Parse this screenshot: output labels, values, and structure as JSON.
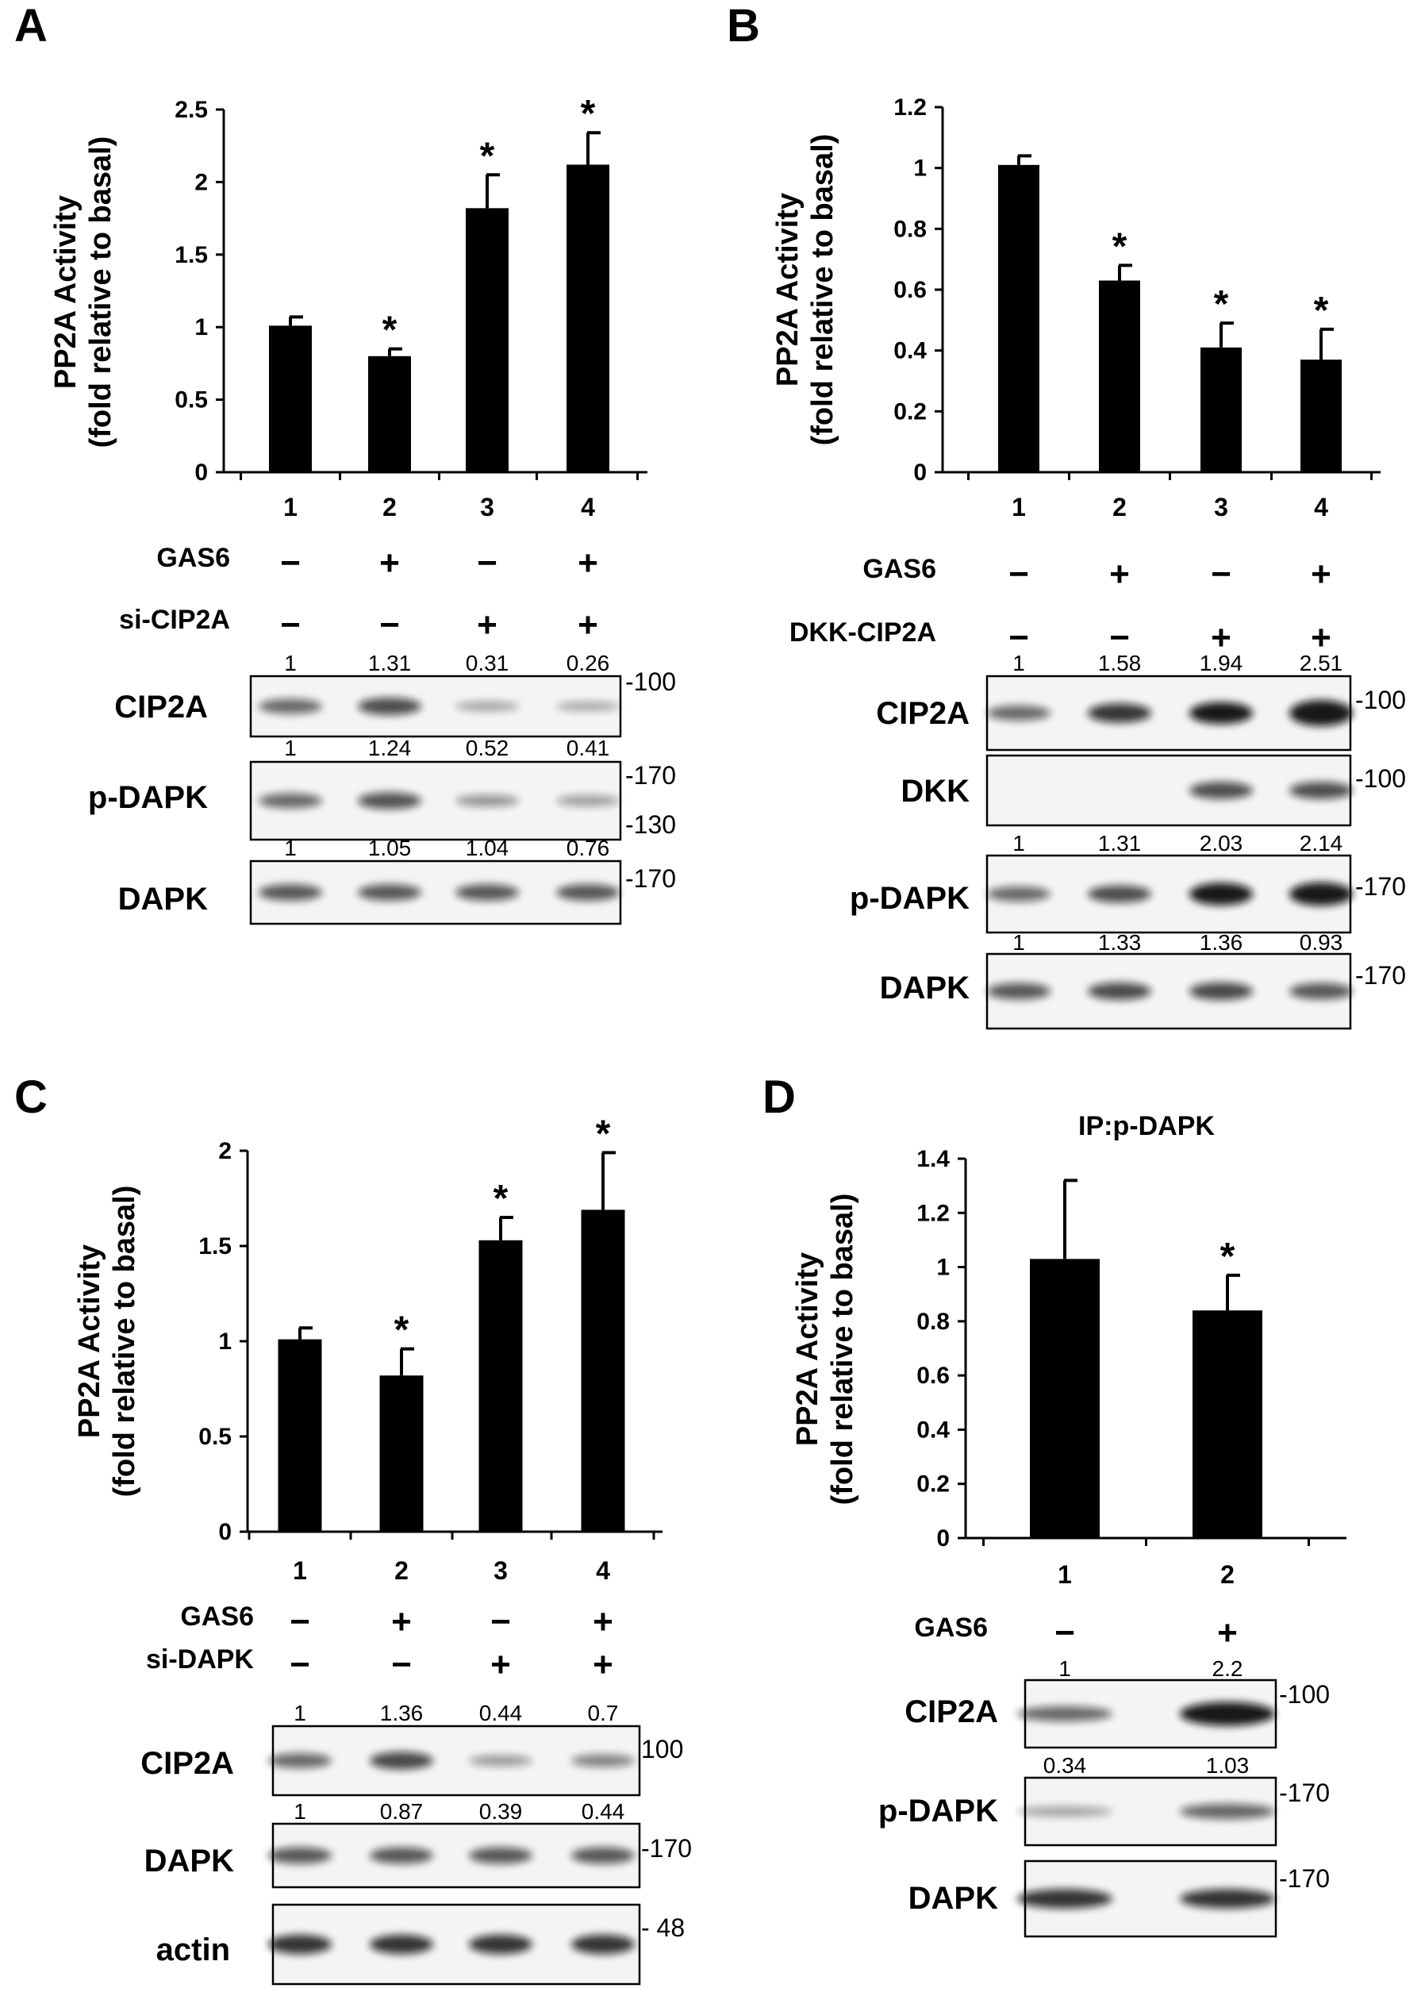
{
  "chart_data": [
    {
      "type": "bar",
      "panel": "A",
      "title": "",
      "ylabel": "PP2A Activity",
      "ylabel_sub": "(fold relative to basal)",
      "categories": [
        "1",
        "2",
        "3",
        "4"
      ],
      "values": [
        1.01,
        0.8,
        1.82,
        2.12
      ],
      "errors": [
        0.06,
        0.05,
        0.23,
        0.22
      ],
      "significant": [
        "",
        "*",
        "*",
        "*"
      ],
      "ylim": [
        0,
        2.5
      ],
      "yticks": [
        "0",
        "0.5",
        "1",
        "1.5",
        "2",
        "2.5"
      ],
      "conditions": [
        {
          "name": "GAS6",
          "signs": [
            "-",
            "+",
            "-",
            "+"
          ]
        },
        {
          "name": "si-CIP2A",
          "signs": [
            "-",
            "-",
            "+",
            "+"
          ]
        }
      ],
      "blots": [
        {
          "name": "CIP2A",
          "quant": [
            "1",
            "1.31",
            "0.31",
            "0.26"
          ],
          "markers": [
            "-100"
          ]
        },
        {
          "name": "p-DAPK",
          "quant": [
            "1",
            "1.24",
            "0.52",
            "0.41"
          ],
          "markers": [
            "-170",
            "-130"
          ]
        },
        {
          "name": "DAPK",
          "quant": [
            "1",
            "1.05",
            "1.04",
            "0.76"
          ],
          "markers": [
            "-170"
          ]
        }
      ]
    },
    {
      "type": "bar",
      "panel": "B",
      "title": "",
      "ylabel": "PP2A Activity",
      "ylabel_sub": "(fold relative to basal)",
      "categories": [
        "1",
        "2",
        "3",
        "4"
      ],
      "values": [
        1.01,
        0.63,
        0.41,
        0.37
      ],
      "errors": [
        0.03,
        0.05,
        0.08,
        0.1
      ],
      "significant": [
        "",
        "*",
        "*",
        "*"
      ],
      "ylim": [
        0,
        1.2
      ],
      "yticks": [
        "0",
        "0.2",
        "0.4",
        "0.6",
        "0.8",
        "1",
        "1.2"
      ],
      "conditions": [
        {
          "name": "GAS6",
          "signs": [
            "-",
            "+",
            "-",
            "+"
          ]
        },
        {
          "name": "DKK-CIP2A",
          "signs": [
            "-",
            "-",
            "+",
            "+"
          ]
        }
      ],
      "blots": [
        {
          "name": "CIP2A",
          "quant": [
            "1",
            "1.58",
            "1.94",
            "2.51"
          ],
          "markers": [
            "-100"
          ]
        },
        {
          "name": "DKK",
          "quant": [],
          "markers": [
            "-100"
          ]
        },
        {
          "name": "p-DAPK",
          "quant": [
            "1",
            "1.31",
            "2.03",
            "2.14"
          ],
          "markers": [
            "-170"
          ]
        },
        {
          "name": "DAPK",
          "quant": [
            "1",
            "1.33",
            "1.36",
            "0.93"
          ],
          "markers": [
            "-170"
          ]
        }
      ]
    },
    {
      "type": "bar",
      "panel": "C",
      "title": "",
      "ylabel": "PP2A Activity",
      "ylabel_sub": "(fold relative to basal)",
      "categories": [
        "1",
        "2",
        "3",
        "4"
      ],
      "values": [
        1.01,
        0.82,
        1.53,
        1.69
      ],
      "errors": [
        0.06,
        0.14,
        0.12,
        0.3
      ],
      "significant": [
        "",
        "*",
        "*",
        "*"
      ],
      "ylim": [
        0,
        2
      ],
      "yticks": [
        "0",
        "0.5",
        "1",
        "1.5",
        "2"
      ],
      "conditions": [
        {
          "name": "GAS6",
          "signs": [
            "-",
            "+",
            "-",
            "+"
          ]
        },
        {
          "name": "si-DAPK",
          "signs": [
            "-",
            "-",
            "+",
            "+"
          ]
        }
      ],
      "blots": [
        {
          "name": "CIP2A",
          "quant": [
            "1",
            "1.36",
            "0.44",
            "0.7"
          ],
          "markers": [
            "100"
          ]
        },
        {
          "name": "DAPK",
          "quant": [
            "1",
            "0.87",
            "0.39",
            "0.44"
          ],
          "markers": [
            "-170"
          ]
        },
        {
          "name": "actin",
          "quant": [],
          "markers": [
            "- 48"
          ]
        }
      ]
    },
    {
      "type": "bar",
      "panel": "D",
      "title": "IP:p-DAPK",
      "ylabel": "PP2A Activity",
      "ylabel_sub": "(fold relative to basal)",
      "categories": [
        "1",
        "2"
      ],
      "values": [
        1.03,
        0.84
      ],
      "errors": [
        0.29,
        0.13
      ],
      "significant": [
        "",
        "*"
      ],
      "ylim": [
        0,
        1.4
      ],
      "yticks": [
        "0",
        "0.2",
        "0.4",
        "0.6",
        "0.8",
        "1",
        "1.2",
        "1.4"
      ],
      "conditions": [
        {
          "name": "GAS6",
          "signs": [
            "-",
            "+"
          ]
        }
      ],
      "blots": [
        {
          "name": "CIP2A",
          "quant": [
            "1",
            "2.2"
          ],
          "markers": [
            "-100"
          ]
        },
        {
          "name": "p-DAPK",
          "quant": [
            "0.34",
            "1.03"
          ],
          "markers": [
            "-170"
          ]
        },
        {
          "name": "DAPK",
          "quant": [],
          "markers": [
            "-170"
          ]
        }
      ]
    }
  ]
}
